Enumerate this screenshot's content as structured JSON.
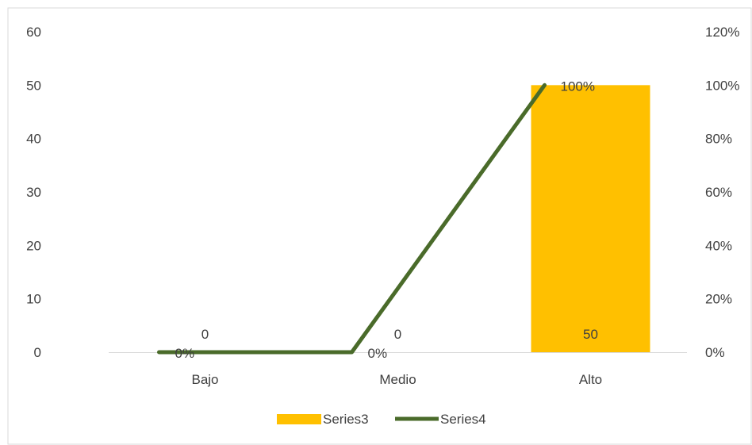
{
  "chart_data": {
    "type": "bar",
    "categories": [
      "Bajo",
      "Medio",
      "Alto"
    ],
    "series": [
      {
        "name": "Series3",
        "type": "bar",
        "axis": "left",
        "color": "#FFC000",
        "values": [
          0,
          0,
          50
        ],
        "data_labels": [
          "0",
          "0",
          "50"
        ]
      },
      {
        "name": "Series4",
        "type": "line",
        "axis": "right",
        "color": "#4A6B2A",
        "values": [
          0,
          0,
          1.0
        ],
        "data_labels": [
          "0%",
          "0%",
          "100%"
        ]
      }
    ],
    "y_left": {
      "ylim": [
        0,
        60
      ],
      "ticks": [
        "0",
        "10",
        "20",
        "30",
        "40",
        "50",
        "60"
      ]
    },
    "y_right": {
      "ylim": [
        0,
        1.2
      ],
      "ticks": [
        "0%",
        "20%",
        "40%",
        "60%",
        "80%",
        "100%",
        "120%"
      ]
    },
    "grid": false,
    "legend": "bottom"
  }
}
